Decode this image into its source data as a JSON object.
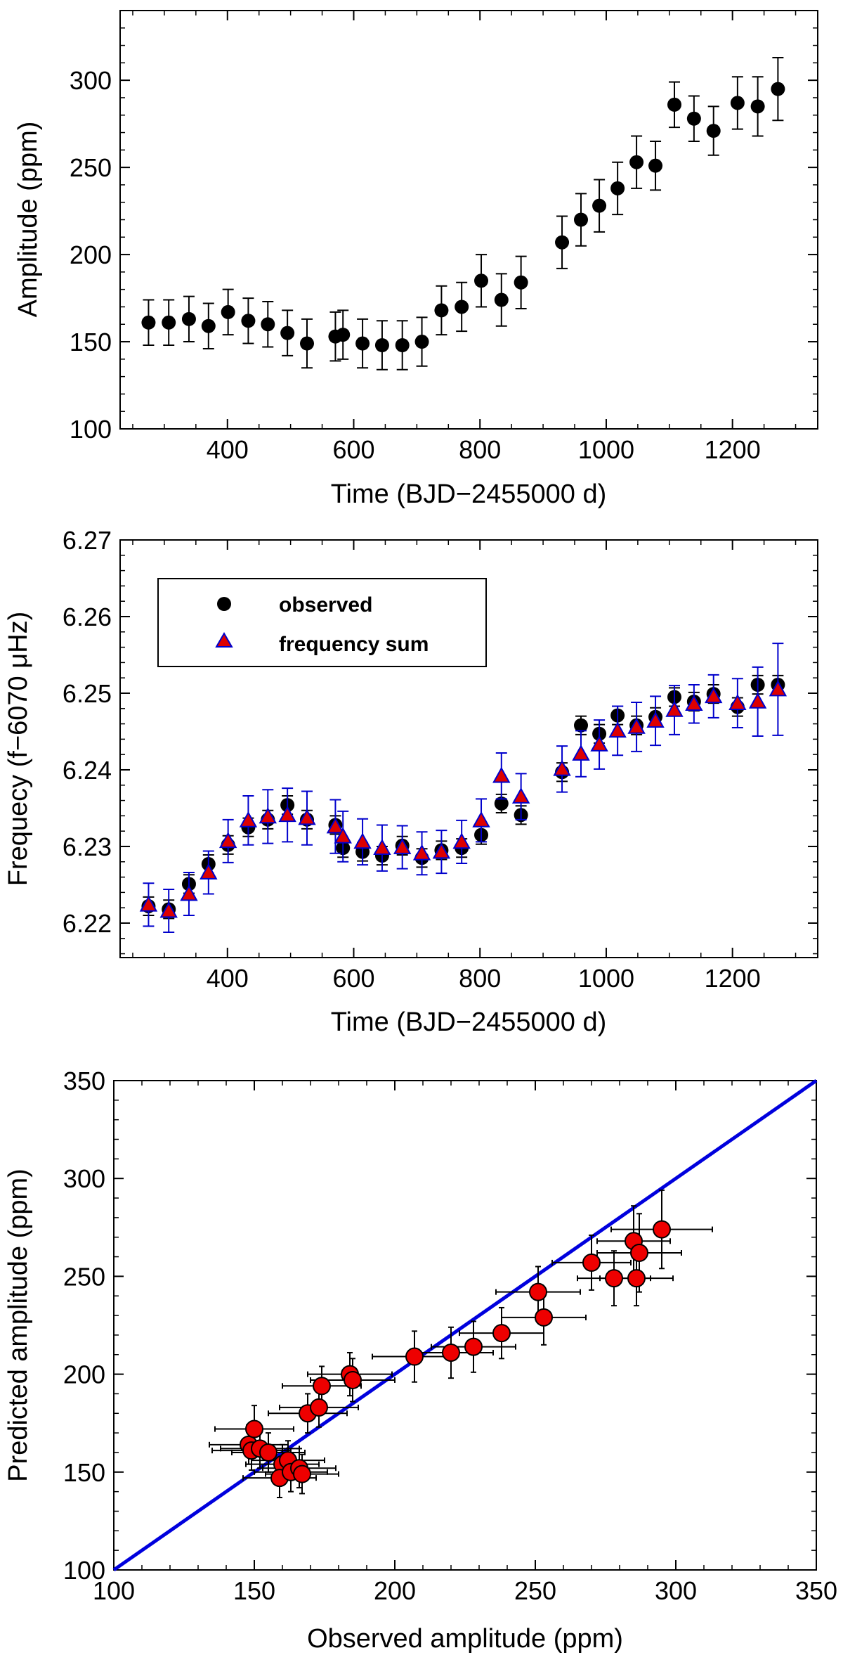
{
  "chart_data": [
    {
      "type": "scatter",
      "xlabel": "Time (BJD−2455000 d)",
      "ylabel": "Amplitude (ppm)",
      "xlim": [
        230,
        1335
      ],
      "ylim": [
        100,
        340
      ],
      "xticks": [
        400,
        600,
        800,
        1000,
        1200
      ],
      "yticks": [
        100,
        150,
        200,
        250,
        300
      ],
      "xtick_labels": [
        "400",
        "600",
        "800",
        "1000",
        "1200"
      ],
      "ytick_labels": [
        "100",
        "150",
        "200",
        "250",
        "300"
      ],
      "series": [
        {
          "name": "amplitude",
          "color": "#000000",
          "marker": "circle",
          "x": [
            275,
            307,
            339,
            370,
            401,
            433,
            464,
            495,
            526,
            571,
            583,
            614,
            645,
            677,
            708,
            739,
            771,
            802,
            834,
            865,
            930,
            960,
            989,
            1018,
            1048,
            1078,
            1108,
            1139,
            1170,
            1208,
            1240,
            1272
          ],
          "y": [
            161,
            161,
            163,
            159,
            167,
            162,
            160,
            155,
            149,
            153,
            154,
            149,
            148,
            148,
            150,
            168,
            170,
            185,
            174,
            184,
            207,
            220,
            228,
            238,
            253,
            251,
            286,
            278,
            271,
            287,
            285,
            295
          ],
          "err": [
            13,
            13,
            13,
            13,
            13,
            13,
            13,
            13,
            14,
            14,
            14,
            14,
            14,
            14,
            14,
            14,
            14,
            15,
            15,
            15,
            15,
            15,
            15,
            15,
            15,
            14,
            13,
            13,
            14,
            15,
            17,
            18
          ]
        }
      ]
    },
    {
      "type": "scatter",
      "xlabel": "Time (BJD−2455000 d)",
      "ylabel": "Frequecy (f−6070 μHz)",
      "xlim": [
        230,
        1335
      ],
      "ylim": [
        6.2155,
        6.27
      ],
      "xticks": [
        400,
        600,
        800,
        1000,
        1200
      ],
      "yticks": [
        6.22,
        6.23,
        6.24,
        6.25,
        6.26,
        6.27
      ],
      "xtick_labels": [
        "400",
        "600",
        "800",
        "1000",
        "1200"
      ],
      "ytick_labels": [
        "6.22",
        "6.23",
        "6.24",
        "6.25",
        "6.26",
        "6.27"
      ],
      "legend": {
        "position": "top-left",
        "entries": [
          "observed",
          "frequency sum"
        ]
      },
      "series": [
        {
          "name": "observed",
          "color": "#000000",
          "marker": "circle",
          "x": [
            275,
            307,
            339,
            370,
            401,
            433,
            464,
            495,
            526,
            571,
            583,
            614,
            645,
            677,
            708,
            739,
            771,
            802,
            834,
            865,
            930,
            960,
            989,
            1018,
            1048,
            1078,
            1108,
            1139,
            1170,
            1208,
            1240,
            1272
          ],
          "y": [
            6.2222,
            6.2218,
            6.2251,
            6.2277,
            6.2302,
            6.2325,
            6.2335,
            6.2354,
            6.2335,
            6.2328,
            6.2298,
            6.2293,
            6.2288,
            6.2301,
            6.2285,
            6.2295,
            6.2298,
            6.2315,
            6.2356,
            6.2341,
            6.2397,
            6.2458,
            6.2447,
            6.2471,
            6.2458,
            6.2469,
            6.2495,
            6.2489,
            6.2499,
            6.2482,
            6.2511,
            6.2511
          ],
          "err": [
            0.0012,
            0.0012,
            0.0012,
            0.0012,
            0.0012,
            0.0012,
            0.0012,
            0.0012,
            0.0012,
            0.0012,
            0.0012,
            0.0012,
            0.0012,
            0.0012,
            0.0012,
            0.0012,
            0.0012,
            0.0012,
            0.0012,
            0.0012,
            0.0012,
            0.0012,
            0.0012,
            0.0012,
            0.0012,
            0.0012,
            0.0012,
            0.0012,
            0.0012,
            0.0012,
            0.0012,
            0.0012
          ]
        },
        {
          "name": "frequency sum",
          "color": "#dd0000",
          "edge_color": "#0000cc",
          "marker": "triangle",
          "x": [
            275,
            307,
            339,
            370,
            401,
            433,
            464,
            495,
            526,
            571,
            583,
            614,
            645,
            677,
            708,
            739,
            771,
            802,
            834,
            865,
            930,
            960,
            989,
            1018,
            1048,
            1078,
            1108,
            1139,
            1170,
            1208,
            1240,
            1272
          ],
          "y": [
            6.2224,
            6.2216,
            6.2238,
            6.2266,
            6.2307,
            6.2334,
            6.2339,
            6.2341,
            6.2337,
            6.2326,
            6.2313,
            6.2306,
            6.2298,
            6.2299,
            6.2291,
            6.2293,
            6.2306,
            6.2334,
            6.2392,
            6.2365,
            6.2401,
            6.2421,
            6.2433,
            6.2451,
            6.2456,
            6.2464,
            6.2478,
            6.2486,
            6.2496,
            6.2487,
            6.2489,
            6.2505
          ],
          "err": [
            0.0028,
            0.0028,
            0.0028,
            0.0028,
            0.0028,
            0.0032,
            0.0035,
            0.0035,
            0.0035,
            0.0035,
            0.0033,
            0.003,
            0.003,
            0.0028,
            0.0028,
            0.0028,
            0.0028,
            0.0028,
            0.003,
            0.003,
            0.003,
            0.003,
            0.0032,
            0.0032,
            0.0032,
            0.0032,
            0.0032,
            0.0025,
            0.0028,
            0.0032,
            0.0045,
            0.006
          ]
        }
      ]
    },
    {
      "type": "scatter",
      "xlabel": "Observed amplitude (ppm)",
      "ylabel": "Predicted amplitude (ppm)",
      "xlim": [
        100,
        350
      ],
      "ylim": [
        100,
        350
      ],
      "xticks": [
        100,
        150,
        200,
        250,
        300,
        350
      ],
      "yticks": [
        100,
        150,
        200,
        250,
        300,
        350
      ],
      "xtick_labels": [
        "100",
        "150",
        "200",
        "250",
        "300",
        "350"
      ],
      "ytick_labels": [
        "100",
        "150",
        "200",
        "250",
        "300",
        "350"
      ],
      "reference_line": {
        "name": "y = x",
        "color": "#0000dd",
        "from": [
          100,
          100
        ],
        "to": [
          350,
          350
        ]
      },
      "series": [
        {
          "name": "predicted vs observed",
          "color": "#ee0000",
          "edge_color": "#000000",
          "marker": "circle",
          "x": [
            148,
            149,
            150,
            152,
            155,
            160,
            159,
            162,
            163,
            166,
            167,
            169,
            173,
            174,
            184,
            185,
            207,
            220,
            228,
            238,
            251,
            253,
            270,
            278,
            285,
            287,
            295,
            286
          ],
          "y": [
            164,
            161,
            172,
            162,
            160,
            154,
            147,
            156,
            150,
            152,
            149,
            180,
            183,
            194,
            200,
            197,
            209,
            211,
            214,
            221,
            242,
            229,
            257,
            249,
            268,
            262,
            274,
            249
          ],
          "xerr": [
            14,
            14,
            14,
            14,
            13,
            13,
            13,
            13,
            13,
            13,
            13,
            14,
            14,
            14,
            15,
            15,
            15,
            15,
            15,
            15,
            15,
            15,
            14,
            13,
            13,
            15,
            18,
            13
          ],
          "yerr": [
            10,
            10,
            12,
            10,
            10,
            10,
            10,
            10,
            10,
            10,
            10,
            10,
            10,
            10,
            11,
            11,
            13,
            13,
            13,
            13,
            13,
            14,
            14,
            14,
            18,
            20,
            20,
            14
          ]
        }
      ]
    }
  ]
}
